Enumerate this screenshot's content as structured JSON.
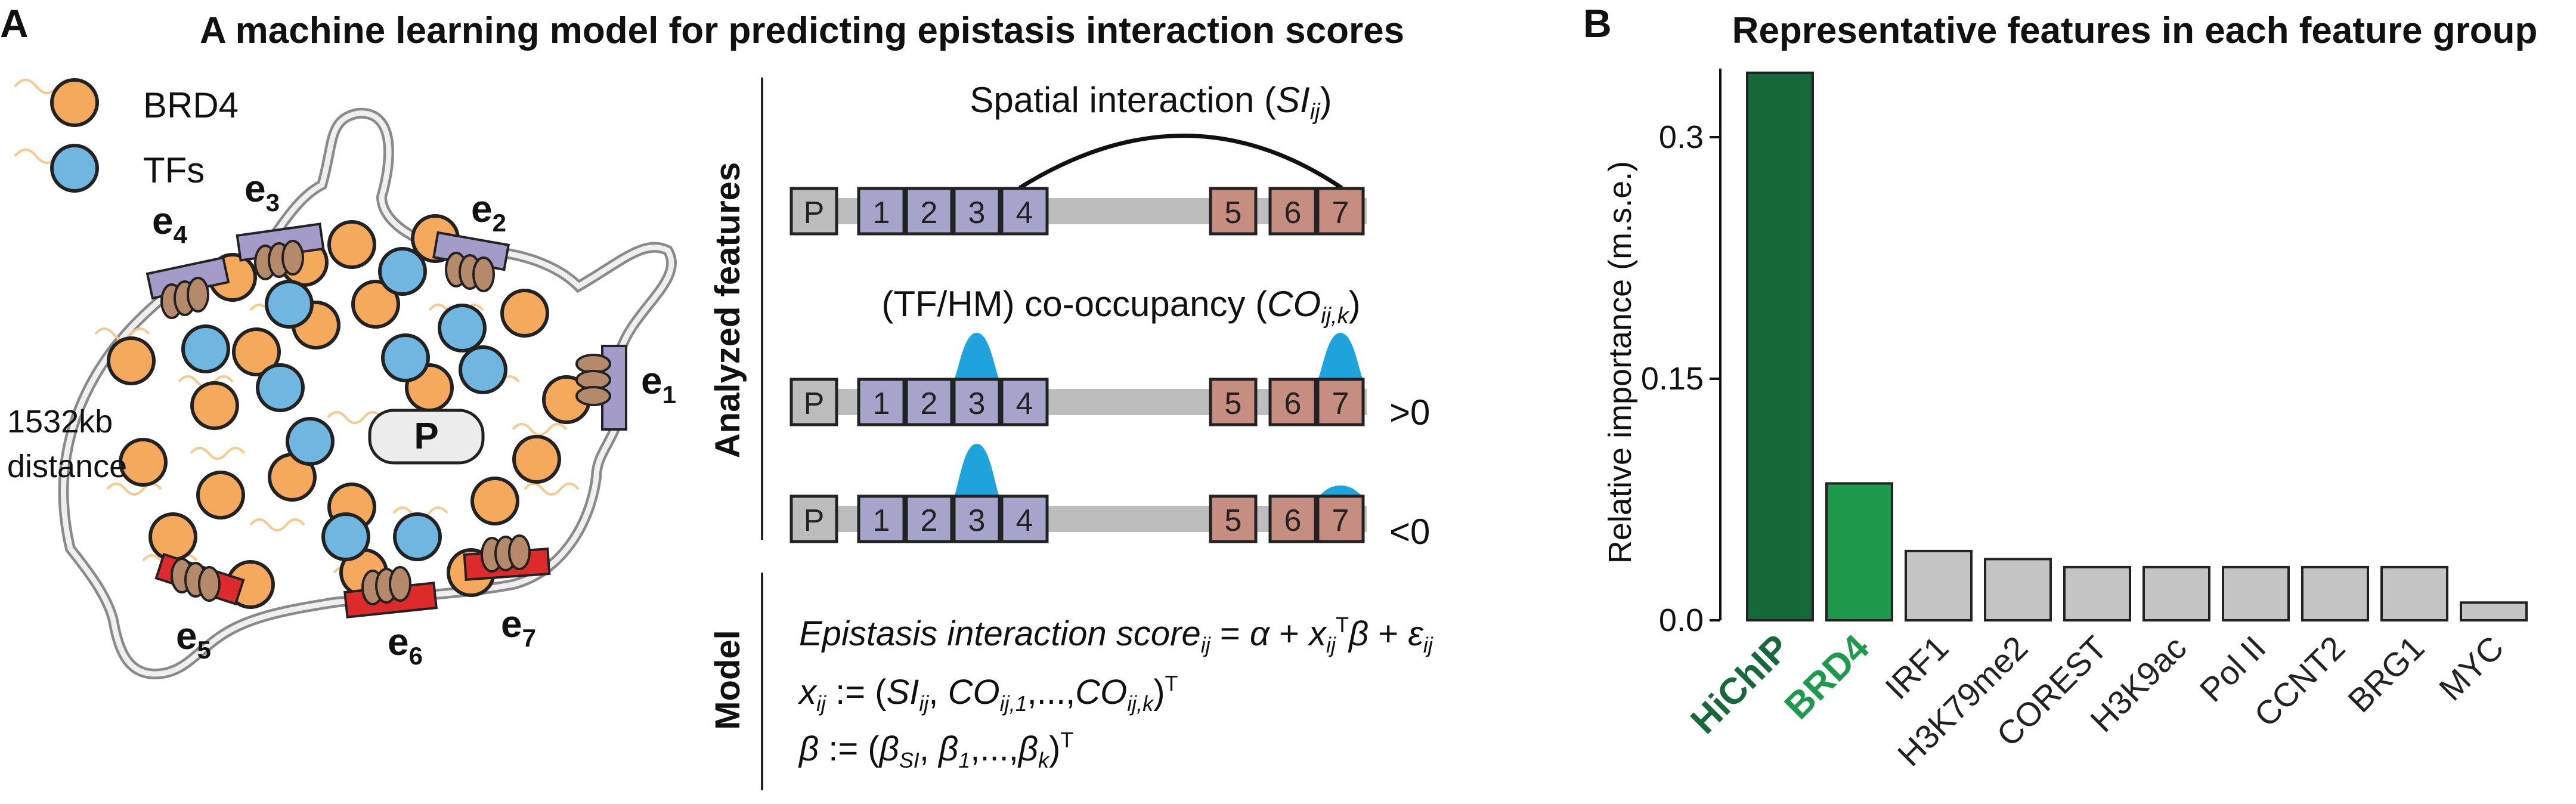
{
  "panel_a": {
    "label": "A",
    "title": "A machine learning model for predicting epistasis interaction scores",
    "legend": {
      "brd4": "BRD4",
      "tfs": "TFs"
    },
    "promoter": "P",
    "distance_line1": "1532kb",
    "distance_line2": "distance",
    "enhancers": [
      {
        "base": "e",
        "sub": "1"
      },
      {
        "base": "e",
        "sub": "2"
      },
      {
        "base": "e",
        "sub": "3"
      },
      {
        "base": "e",
        "sub": "4"
      },
      {
        "base": "e",
        "sub": "5"
      },
      {
        "base": "e",
        "sub": "6"
      },
      {
        "base": "e",
        "sub": "7"
      }
    ],
    "features_label": "Analyzed features",
    "model_label": "Model",
    "spatial_title": "Spatial interaction (",
    "spatial_si": "SI",
    "spatial_sub": "ij",
    "spatial_close": ")",
    "cooc_title": "(TF/HM) co-occupancy (",
    "cooc_co": "CO",
    "cooc_sub": "ij,k",
    "cooc_close": ")",
    "track_labels": [
      "P",
      "1",
      "2",
      "3",
      "4",
      "5",
      "6",
      "7"
    ],
    "sign_pos": ">0",
    "sign_neg": "<0",
    "eq1": {
      "lhs": "Epistasis interaction score",
      "lhs_sub": "ij",
      "mid1": " = ",
      "alpha": "α",
      "plus1": " + ",
      "x": "x",
      "x_sub": "ij",
      "T": "T",
      "beta": "β",
      "plus2": " + ",
      "eps": "ε",
      "eps_sub": "ij"
    },
    "eq2": {
      "x": "x",
      "x_sub": "ij",
      "assign": " := (",
      "si": "SI",
      "si_sub": "ij",
      "comma1": ", ",
      "co": "CO",
      "co_sub1": "ij,1",
      "dots": ",...,",
      "co2": "CO",
      "co_sub2": "ij,k",
      "close": ")",
      "T": "T"
    },
    "eq3": {
      "beta": "β",
      "assign": " := (",
      "b": "β",
      "b_sub_si": "SI",
      "comma": ", ",
      "b1": "β",
      "b1_sub": "1",
      "dots": ",...,",
      "bk": "β",
      "bk_sub": "k",
      "close": ")",
      "T": "T"
    }
  },
  "panel_b": {
    "label": "B",
    "title": "Representative features in each feature group"
  },
  "colors": {
    "brd4": "#f4a95c",
    "tf": "#6fb7e1",
    "enh_purple": "#a49bc8",
    "enh_red": "#dd2b2b",
    "box_purple": "#a7a4cc",
    "box_red": "#c68e80",
    "box_gray": "#bcbcbc",
    "track": "#bdbdbd",
    "peak": "#1fa3dd",
    "hichip": "#17683a",
    "brd4_bar": "#1f9a4d",
    "bar_gray": "#c4c4c4",
    "squiggle": "#f6c98f",
    "nucleosome": "#b58a6b"
  },
  "chart_data": {
    "type": "bar",
    "title": "Representative features in each feature group",
    "xlabel": "",
    "ylabel": "Relative importance (m.s.e.)",
    "categories": [
      "HiChIP",
      "BRD4",
      "IRF1",
      "H3K79me2",
      "COREST",
      "H3K9ac",
      "Pol II",
      "CCNT2",
      "BRG1",
      "MYC"
    ],
    "values": [
      0.34,
      0.085,
      0.043,
      0.038,
      0.033,
      0.033,
      0.033,
      0.033,
      0.033,
      0.011
    ],
    "bar_colors": [
      "#17683a",
      "#1f9a4d",
      "#c4c4c4",
      "#c4c4c4",
      "#c4c4c4",
      "#c4c4c4",
      "#c4c4c4",
      "#c4c4c4",
      "#c4c4c4",
      "#c4c4c4"
    ],
    "label_colors": [
      "#17683a",
      "#1f9a4d",
      "#222222",
      "#222222",
      "#222222",
      "#222222",
      "#222222",
      "#222222",
      "#222222",
      "#222222"
    ],
    "yticks": [
      0.0,
      0.15,
      0.3
    ],
    "ytick_labels": [
      "0.0",
      "0.15",
      "0.3"
    ],
    "ylim": [
      0,
      0.35
    ],
    "grid": false
  }
}
